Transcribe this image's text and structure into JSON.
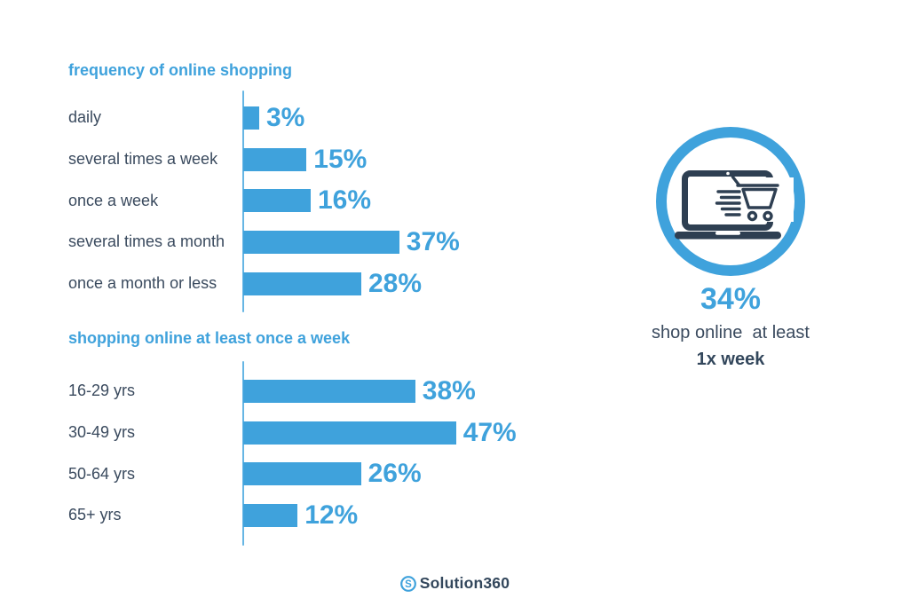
{
  "colors": {
    "accent_blue": "#3fa2dc",
    "axis_blue": "#66b6e4",
    "text_navy": "#3a4a5e",
    "icon_navy": "#2e3f52",
    "brand_navy": "#33475c"
  },
  "chart_data": [
    {
      "type": "bar",
      "orientation": "horizontal",
      "title": "frequency of online shopping",
      "categories": [
        "daily",
        "several times a week",
        "once a week",
        "several times a month",
        "once a month or less"
      ],
      "values": [
        3,
        15,
        16,
        37,
        28
      ],
      "unit": "%",
      "grid": false,
      "legend": "none",
      "value_labels": "end-of-bar"
    },
    {
      "type": "bar",
      "orientation": "horizontal",
      "title": "shopping online at least once a week",
      "categories": [
        "16-29 yrs",
        "30-49 yrs",
        "50-64 yrs",
        "65+ yrs"
      ],
      "values": [
        38,
        47,
        26,
        12
      ],
      "unit": "%",
      "grid": false,
      "legend": "none",
      "value_labels": "end-of-bar"
    }
  ],
  "highlight": {
    "icon": "laptop-shopping-cart-icon",
    "value": "34%",
    "line1": "shop online  at least",
    "line2": "1x week"
  },
  "footer": {
    "brand": "Solution360",
    "brand_icon": "solution360-s-icon",
    "brand_icon_letter": "S"
  }
}
